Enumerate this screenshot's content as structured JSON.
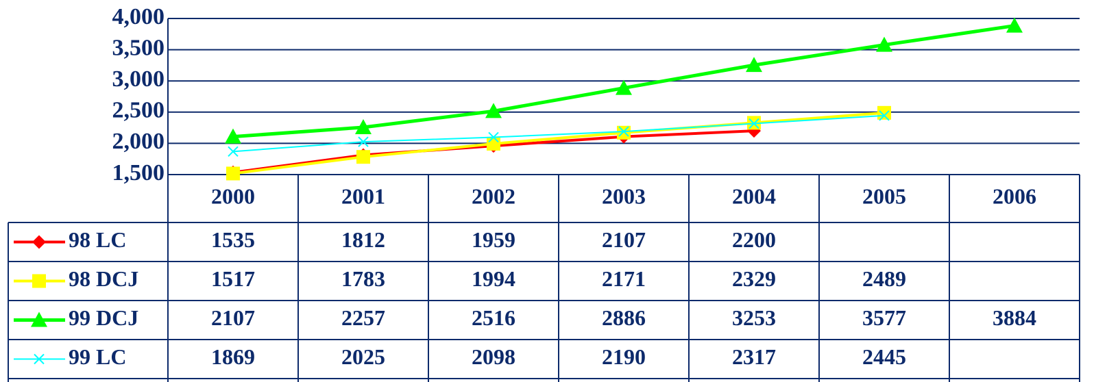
{
  "chart_data": {
    "type": "line",
    "categories": [
      "2000",
      "2001",
      "2002",
      "2003",
      "2004",
      "2005",
      "2006"
    ],
    "series": [
      {
        "name": "98 LC",
        "color": "#ff0000",
        "marker": "diamond",
        "values": [
          1535,
          1812,
          1959,
          2107,
          2200,
          null,
          null
        ]
      },
      {
        "name": "98 DCJ",
        "color": "#ffff00",
        "marker": "square",
        "values": [
          1517,
          1783,
          1994,
          2171,
          2329,
          2489,
          null
        ]
      },
      {
        "name": "99 DCJ",
        "color": "#00ff00",
        "marker": "triangle",
        "values": [
          2107,
          2257,
          2516,
          2886,
          3253,
          3577,
          3884
        ]
      },
      {
        "name": "99 LC",
        "color": "#00ffff",
        "marker": "x",
        "values": [
          1869,
          2025,
          2098,
          2190,
          2317,
          2445,
          null
        ]
      }
    ],
    "ylim": [
      1500,
      4000
    ],
    "yticks": [
      {
        "value": 1500,
        "label": "1,500"
      },
      {
        "value": 2000,
        "label": "2,000"
      },
      {
        "value": 2500,
        "label": "2,500"
      },
      {
        "value": 3000,
        "label": "3,000"
      },
      {
        "value": 3500,
        "label": "3,500"
      },
      {
        "value": 4000,
        "label": "4,000"
      }
    ],
    "grid": true,
    "data_table": true
  }
}
